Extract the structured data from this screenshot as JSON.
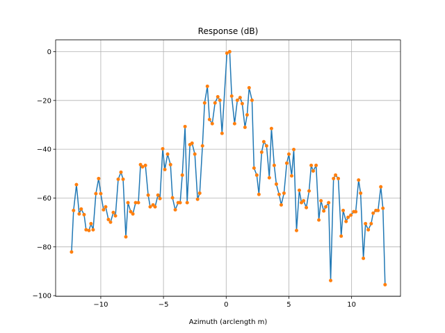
{
  "chart_data": {
    "type": "line",
    "title": "Response (dB)",
    "xlabel": "Azimuth (arclength m)",
    "x": [
      -12.33,
      -12.17,
      -11.94,
      -11.72,
      -11.56,
      -11.33,
      -11.17,
      -10.94,
      -10.78,
      -10.61,
      -10.39,
      -10.17,
      -10,
      -9.78,
      -9.61,
      -9.39,
      -9.22,
      -9,
      -8.83,
      -8.61,
      -8.39,
      -8.22,
      -8,
      -7.83,
      -7.61,
      -7.44,
      -7.22,
      -7,
      -6.83,
      -6.67,
      -6.44,
      -6.22,
      -6.06,
      -5.83,
      -5.67,
      -5.44,
      -5.28,
      -5.06,
      -4.89,
      -4.67,
      -4.44,
      -4.28,
      -4.06,
      -3.83,
      -3.67,
      -3.5,
      -3.28,
      -3.11,
      -2.89,
      -2.72,
      -2.5,
      -2.28,
      -2.11,
      -1.89,
      -1.72,
      -1.5,
      -1.33,
      -1.11,
      -0.89,
      -0.67,
      -0.5,
      -0.33,
      0.06,
      0.28,
      0.44,
      0.67,
      0.89,
      1.11,
      1.28,
      1.5,
      1.67,
      1.83,
      2.06,
      2.22,
      2.44,
      2.61,
      2.83,
      3,
      3.22,
      3.44,
      3.61,
      3.83,
      4,
      4.22,
      4.39,
      4.61,
      4.83,
      5,
      5.22,
      5.39,
      5.61,
      5.83,
      6,
      6.17,
      6.39,
      6.61,
      6.78,
      6.94,
      7.17,
      7.39,
      7.56,
      7.78,
      7.94,
      8.17,
      8.33,
      8.56,
      8.72,
      8.94,
      9.17,
      9.33,
      9.56,
      9.72,
      9.94,
      10.17,
      10.33,
      10.56,
      10.72,
      10.94,
      11.11,
      11.33,
      11.56,
      11.72,
      11.94,
      12.11,
      12.33,
      12.5,
      12.67
    ],
    "values": [
      -82.1,
      -65.1,
      -54.5,
      -66.5,
      -64.5,
      -66.8,
      -73,
      -73.3,
      -70.5,
      -73,
      -58.2,
      -52,
      -58.2,
      -64.8,
      -63.6,
      -68.8,
      -69.9,
      -65.9,
      -67.3,
      -52.3,
      -49.4,
      -52.3,
      -75.9,
      -61.9,
      -65.6,
      -66.5,
      -61.9,
      -61.9,
      -46.3,
      -47.2,
      -46.6,
      -58.8,
      -63.6,
      -62.8,
      -63.6,
      -58.8,
      -60.2,
      -39.8,
      -48.3,
      -42,
      -46.3,
      -59.9,
      -64.8,
      -61.9,
      -61.9,
      -50.6,
      -30.7,
      -61.9,
      -38.1,
      -37.5,
      -42,
      -60.5,
      -58,
      -38.6,
      -21,
      -14.2,
      -27.8,
      -29.5,
      -21,
      -18.5,
      -19.9,
      -33.5,
      -0.6,
      0,
      -18.2,
      -29.5,
      -19.9,
      -18.8,
      -21.3,
      -31,
      -25.9,
      -14.8,
      -19.9,
      -47.7,
      -50.6,
      -58.5,
      -41.2,
      -36.9,
      -38.6,
      -51.7,
      -31.5,
      -46.6,
      -54.3,
      -58.5,
      -62.8,
      -58,
      -45.7,
      -42,
      -50.9,
      -40.1,
      -73.3,
      -56.8,
      -61.9,
      -61.1,
      -63.9,
      -57.1,
      -46.6,
      -48.9,
      -46.6,
      -69,
      -61.1,
      -65.3,
      -63.6,
      -61.9,
      -93.8,
      -52,
      -50.6,
      -52,
      -75.6,
      -65.1,
      -69.6,
      -67.9,
      -67,
      -65.6,
      -65.6,
      -52.6,
      -58,
      -84.7,
      -70.5,
      -73,
      -70.5,
      -66.2,
      -65.1,
      -65.1,
      -55.4,
      -64.2,
      -95.5
    ],
    "line_color": "#1f77b4",
    "marker_color": "#ff7f0e",
    "xlim": [
      -13.6,
      13.9
    ],
    "ylim": [
      -100.3,
      4.8
    ],
    "xticks": [
      {
        "value": -10,
        "label": "−10"
      },
      {
        "value": -5,
        "label": "−5"
      },
      0,
      5,
      10
    ],
    "yticks": [
      {
        "value": -100,
        "label": "−100"
      },
      {
        "value": -80,
        "label": "−80"
      },
      {
        "value": -60,
        "label": "−60"
      },
      {
        "value": -40,
        "label": "−40"
      },
      {
        "value": -20,
        "label": "−20"
      },
      0
    ],
    "grid": true
  }
}
